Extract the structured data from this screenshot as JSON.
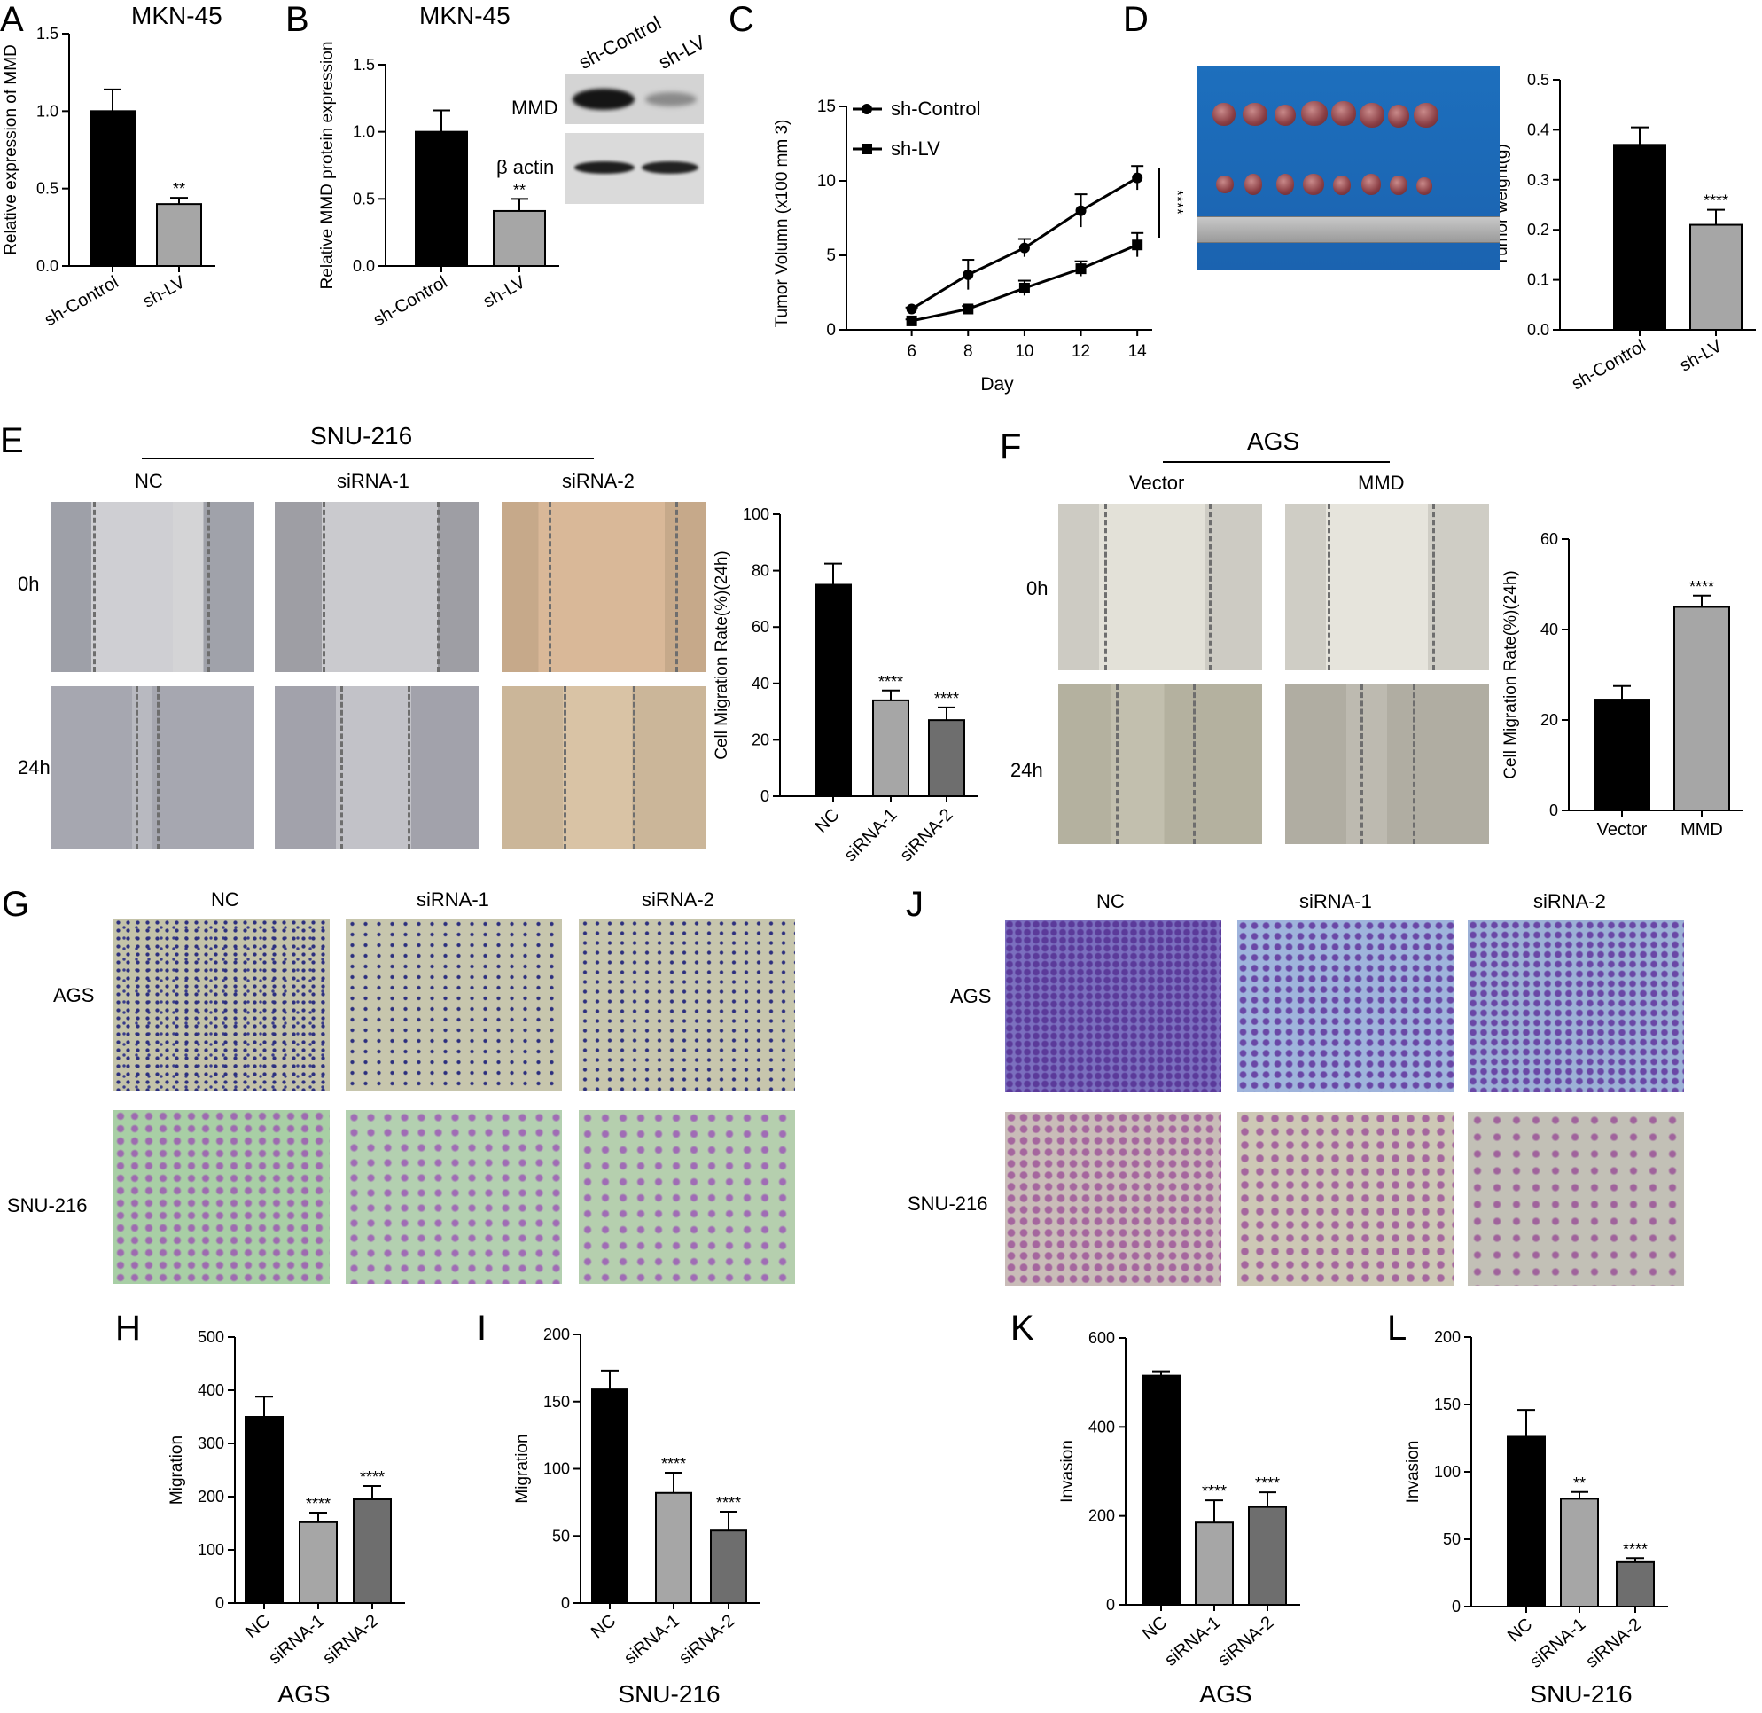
{
  "panel_letters": [
    "A",
    "B",
    "C",
    "D",
    "E",
    "F",
    "G",
    "H",
    "I",
    "J",
    "K",
    "L"
  ],
  "titles": {
    "A": "MKN-45",
    "B": "MKN-45",
    "E": "SNU-216",
    "F": "AGS",
    "H": "AGS",
    "I": "SNU-216",
    "K": "AGS",
    "L": "SNU-216"
  },
  "blot": {
    "lanes": [
      "sh-Control",
      "sh-LV"
    ],
    "rows": [
      "MMD",
      "β actin"
    ]
  },
  "panel_E": {
    "columns": [
      "NC",
      "siRNA-1",
      "siRNA-2"
    ],
    "rows": [
      "0h",
      "24h"
    ]
  },
  "panel_F": {
    "columns": [
      "Vector",
      "MMD"
    ],
    "rows": [
      "0h",
      "24h"
    ]
  },
  "panel_G": {
    "columns": [
      "NC",
      "siRNA-1",
      "siRNA-2"
    ],
    "rows": [
      "AGS",
      "SNU-216"
    ]
  },
  "panel_J": {
    "columns": [
      "NC",
      "siRNA-1",
      "siRNA-2"
    ],
    "rows": [
      "AGS",
      "SNU-216"
    ]
  },
  "colors": {
    "black": "#000000",
    "light_gray": "#a6a6a6",
    "dark_gray": "#6e6e6e"
  },
  "chart_data": [
    {
      "id": "A",
      "type": "bar",
      "categories": [
        "sh-Control",
        "sh-LV"
      ],
      "values": [
        1.0,
        0.4
      ],
      "errors": [
        0.14,
        0.04
      ],
      "significance": [
        "",
        "**"
      ],
      "colors": [
        "#000000",
        "#a6a6a6"
      ],
      "ylabel": "Relative expression of MMD",
      "ylim": [
        0,
        1.5
      ],
      "yticks": [
        "0.0",
        "0.5",
        "1.0",
        "1.5"
      ]
    },
    {
      "id": "B",
      "type": "bar",
      "categories": [
        "sh-Control",
        "sh-LV"
      ],
      "values": [
        1.0,
        0.41
      ],
      "errors": [
        0.16,
        0.09
      ],
      "significance": [
        "",
        "**"
      ],
      "colors": [
        "#000000",
        "#a6a6a6"
      ],
      "ylabel": "Relative MMD protein expression",
      "ylim": [
        0,
        1.5
      ],
      "yticks": [
        "0.0",
        "0.5",
        "1.0",
        "1.5"
      ]
    },
    {
      "id": "C",
      "type": "line",
      "x": [
        6,
        8,
        10,
        12,
        14
      ],
      "series": [
        {
          "name": "sh-Control",
          "marker": "circle",
          "values": [
            1.4,
            3.7,
            5.5,
            8.0,
            10.2
          ],
          "errors": [
            0.1,
            1.0,
            0.6,
            1.1,
            0.8
          ]
        },
        {
          "name": "sh-LV",
          "marker": "square",
          "values": [
            0.6,
            1.4,
            2.8,
            4.1,
            5.7
          ],
          "errors": [
            0.1,
            0.2,
            0.5,
            0.5,
            0.8
          ]
        }
      ],
      "xlabel": "Day",
      "ylabel": "Tumor Volumn (x100 mm 3)",
      "xlim": [
        4,
        15
      ],
      "xticks": [
        "6",
        "8",
        "10",
        "12",
        "14"
      ],
      "ylim": [
        0,
        15
      ],
      "yticks": [
        "0",
        "5",
        "10",
        "15"
      ],
      "significance": "****"
    },
    {
      "id": "D",
      "type": "bar",
      "categories": [
        "sh-Control",
        "sh-LV"
      ],
      "values": [
        0.37,
        0.21
      ],
      "errors": [
        0.035,
        0.03
      ],
      "significance": [
        "",
        "****"
      ],
      "colors": [
        "#000000",
        "#a6a6a6"
      ],
      "ylabel": "Tumor weight(g)",
      "ylim": [
        0,
        0.5
      ],
      "yticks": [
        "0.0",
        "0.1",
        "0.2",
        "0.3",
        "0.4",
        "0.5"
      ]
    },
    {
      "id": "E",
      "type": "bar",
      "categories": [
        "NC",
        "siRNA-1",
        "siRNA-2"
      ],
      "values": [
        75,
        34,
        27
      ],
      "errors": [
        7.5,
        3.5,
        4.5
      ],
      "significance": [
        "",
        "****",
        "****"
      ],
      "colors": [
        "#000000",
        "#a6a6a6",
        "#6e6e6e"
      ],
      "ylabel": "Cell Migration Rate(%)(24h)",
      "ylim": [
        0,
        100
      ],
      "yticks": [
        "0",
        "20",
        "40",
        "60",
        "80",
        "100"
      ]
    },
    {
      "id": "F",
      "type": "bar",
      "categories": [
        "Vector",
        "MMD"
      ],
      "values": [
        24.5,
        45
      ],
      "errors": [
        3,
        2.5
      ],
      "significance": [
        "",
        "****"
      ],
      "colors": [
        "#000000",
        "#a6a6a6"
      ],
      "ylabel": "Cell Migration Rate(%)(24h)",
      "ylim": [
        0,
        60
      ],
      "yticks": [
        "0",
        "20",
        "40",
        "60"
      ]
    },
    {
      "id": "H",
      "type": "bar",
      "categories": [
        "NC",
        "siRNA-1",
        "siRNA-2"
      ],
      "values": [
        350,
        152,
        195
      ],
      "errors": [
        38,
        18,
        25
      ],
      "significance": [
        "",
        "****",
        "****"
      ],
      "colors": [
        "#000000",
        "#a6a6a6",
        "#6e6e6e"
      ],
      "ylabel": "Migration",
      "xlabel": "AGS",
      "ylim": [
        0,
        500
      ],
      "yticks": [
        "0",
        "100",
        "200",
        "300",
        "400",
        "500"
      ]
    },
    {
      "id": "I",
      "type": "bar",
      "categories": [
        "NC",
        "siRNA-1",
        "siRNA-2"
      ],
      "values": [
        159,
        82,
        54
      ],
      "errors": [
        14,
        15,
        14
      ],
      "significance": [
        "",
        "****",
        "****"
      ],
      "colors": [
        "#000000",
        "#a6a6a6",
        "#6e6e6e"
      ],
      "ylabel": "Migration",
      "xlabel": "SNU-216",
      "ylim": [
        0,
        200
      ],
      "yticks": [
        "0",
        "50",
        "100",
        "150",
        "200"
      ]
    },
    {
      "id": "K",
      "type": "bar",
      "categories": [
        "NC",
        "siRNA-1",
        "siRNA-2"
      ],
      "values": [
        515,
        185,
        220
      ],
      "errors": [
        10,
        50,
        33
      ],
      "significance": [
        "",
        "****",
        "****"
      ],
      "colors": [
        "#000000",
        "#a6a6a6",
        "#6e6e6e"
      ],
      "ylabel": "Invasion",
      "xlabel": "AGS",
      "ylim": [
        0,
        600
      ],
      "yticks": [
        "0",
        "200",
        "400",
        "600"
      ]
    },
    {
      "id": "L",
      "type": "bar",
      "categories": [
        "NC",
        "siRNA-1",
        "siRNA-2"
      ],
      "values": [
        126,
        80,
        33
      ],
      "errors": [
        20,
        5,
        3
      ],
      "significance": [
        "",
        "**",
        "****"
      ],
      "colors": [
        "#000000",
        "#a6a6a6",
        "#6e6e6e"
      ],
      "ylabel": "Invasion",
      "xlabel": "SNU-216",
      "ylim": [
        0,
        200
      ],
      "yticks": [
        "0",
        "50",
        "100",
        "150",
        "200"
      ]
    }
  ]
}
